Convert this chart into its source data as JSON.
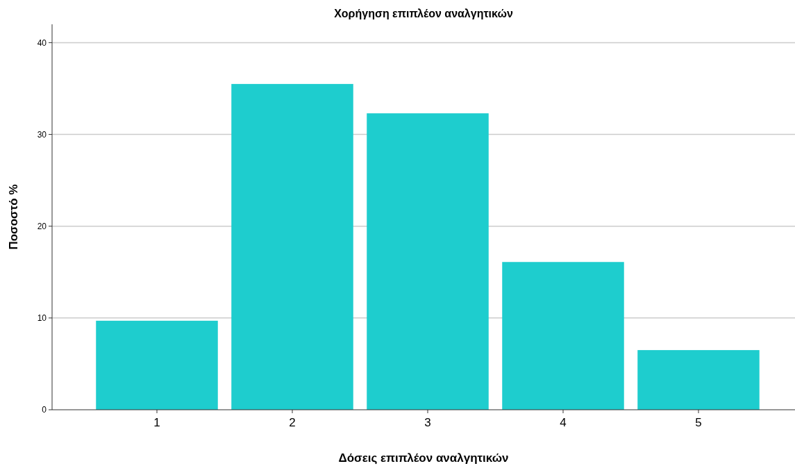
{
  "chart_data": {
    "type": "bar",
    "title": "Χορήγηση επιπλέον αναλγητικών",
    "xlabel": "Δόσεις επιπλέον αναλγητικών",
    "ylabel": "Ποσοστό %",
    "categories": [
      "1",
      "2",
      "3",
      "4",
      "5"
    ],
    "values": [
      9.7,
      35.5,
      32.3,
      16.1,
      6.5
    ],
    "color": "#1ecdce",
    "ylim": [
      0,
      42
    ],
    "yticks": [
      0,
      10,
      20,
      30,
      40
    ],
    "grid": "y"
  }
}
